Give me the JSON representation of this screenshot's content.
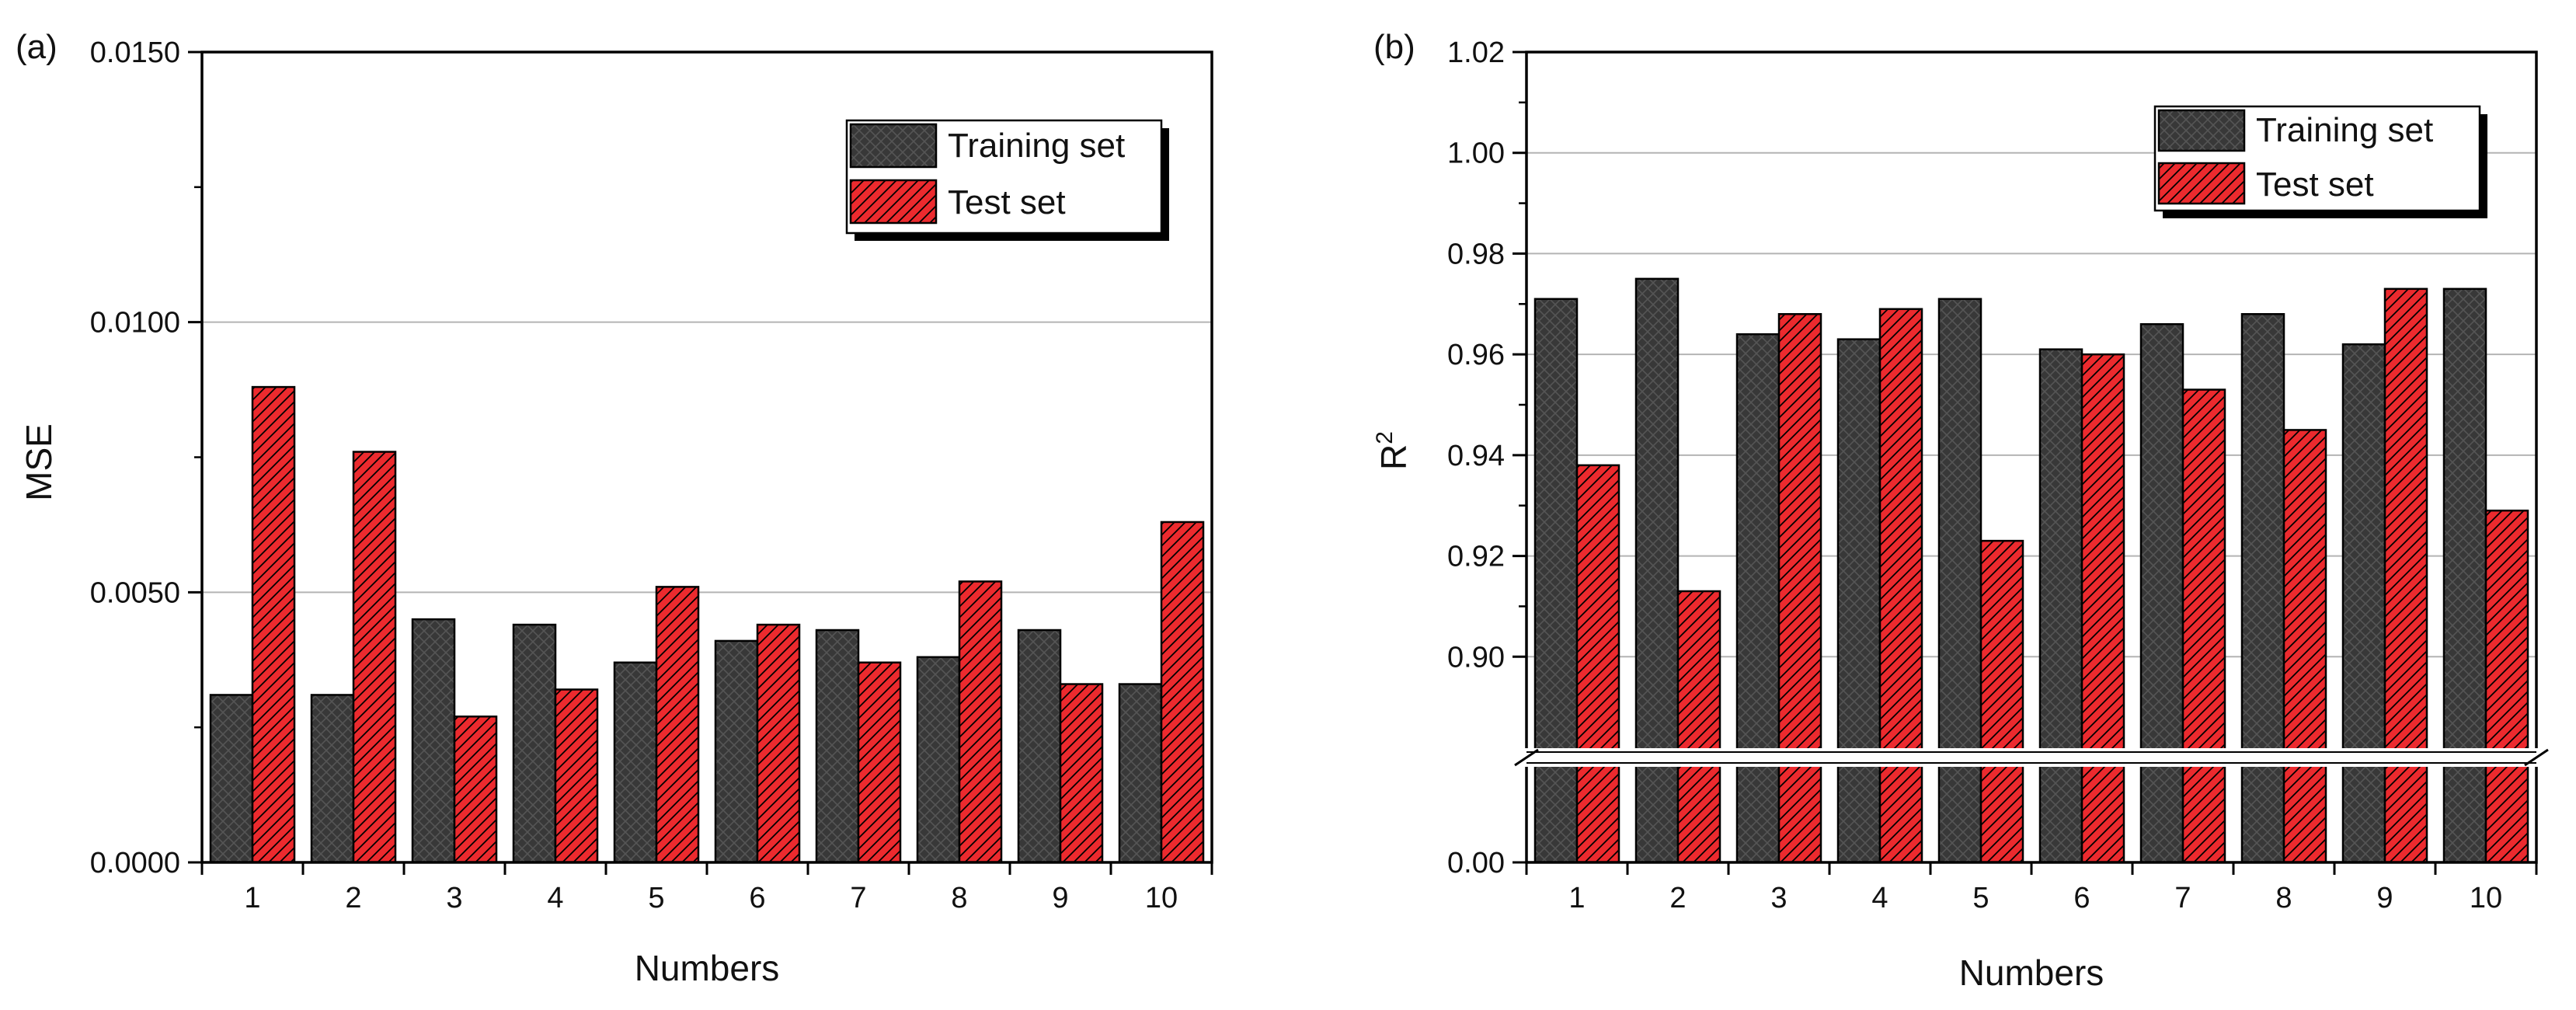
{
  "colors": {
    "training": "#383838",
    "test": "#ec2a2e",
    "axis": "#000000",
    "grid": "#b4b4b4",
    "break": "#ffffff"
  },
  "chart_data": [
    {
      "panel_label": "(a)",
      "type": "bar",
      "xlabel": "Numbers",
      "ylabel": "MSE",
      "categories": [
        "1",
        "2",
        "3",
        "4",
        "5",
        "6",
        "7",
        "8",
        "9",
        "10"
      ],
      "ylim": [
        0,
        0.015
      ],
      "yticks": [
        "0.0000",
        "0.0050",
        "0.0100",
        "0.0150"
      ],
      "ytick_values": [
        0,
        0.005,
        0.01,
        0.015
      ],
      "grid_values": [
        0.005,
        0.01
      ],
      "legend_position": "top-right",
      "series": [
        {
          "name": "Training set",
          "key": "training",
          "values": [
            0.0031,
            0.0031,
            0.0045,
            0.0044,
            0.0037,
            0.0041,
            0.0043,
            0.0038,
            0.0043,
            0.0033
          ]
        },
        {
          "name": "Test set",
          "key": "test",
          "values": [
            0.0088,
            0.0076,
            0.0027,
            0.0032,
            0.0051,
            0.0044,
            0.0037,
            0.0052,
            0.0033,
            0.0063
          ]
        }
      ]
    },
    {
      "panel_label": "(b)",
      "type": "bar",
      "xlabel": "Numbers",
      "ylabel": "R",
      "ylabel_sup": "2",
      "categories": [
        "1",
        "2",
        "3",
        "4",
        "5",
        "6",
        "7",
        "8",
        "9",
        "10"
      ],
      "axis_break": true,
      "lower_segment": [
        0,
        0.02
      ],
      "upper_segment": [
        0.88,
        1.02
      ],
      "yticks": [
        "0.00",
        "0.90",
        "0.92",
        "0.94",
        "0.96",
        "0.98",
        "1.00",
        "1.02"
      ],
      "ytick_values": [
        0,
        0.9,
        0.92,
        0.94,
        0.96,
        0.98,
        1.0,
        1.02
      ],
      "grid_values": [
        0.9,
        0.92,
        0.94,
        0.96,
        0.98,
        1.0
      ],
      "legend_position": "top-right",
      "series": [
        {
          "name": "Training set",
          "key": "training",
          "values": [
            0.971,
            0.975,
            0.964,
            0.963,
            0.971,
            0.961,
            0.966,
            0.968,
            0.962,
            0.973
          ]
        },
        {
          "name": "Test set",
          "key": "test",
          "values": [
            0.938,
            0.913,
            0.968,
            0.969,
            0.923,
            0.96,
            0.953,
            0.945,
            0.973,
            0.929
          ]
        }
      ]
    }
  ]
}
